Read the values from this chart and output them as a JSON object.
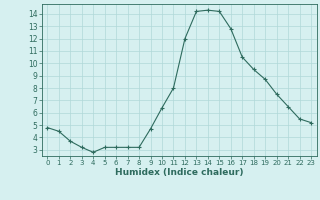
{
  "x": [
    0,
    1,
    2,
    3,
    4,
    5,
    6,
    7,
    8,
    9,
    10,
    11,
    12,
    13,
    14,
    15,
    16,
    17,
    18,
    19,
    20,
    21,
    22,
    23
  ],
  "y": [
    4.8,
    4.5,
    3.7,
    3.2,
    2.8,
    3.2,
    3.2,
    3.2,
    3.2,
    4.7,
    6.4,
    8.0,
    12.0,
    14.2,
    14.3,
    14.2,
    12.8,
    10.5,
    9.5,
    8.7,
    7.5,
    6.5,
    5.5,
    5.2
  ],
  "xlabel": "Humidex (Indice chaleur)",
  "ylim": [
    2.5,
    14.8
  ],
  "xlim": [
    -0.5,
    23.5
  ],
  "yticks": [
    3,
    4,
    5,
    6,
    7,
    8,
    9,
    10,
    11,
    12,
    13,
    14
  ],
  "xticks": [
    0,
    1,
    2,
    3,
    4,
    5,
    6,
    7,
    8,
    9,
    10,
    11,
    12,
    13,
    14,
    15,
    16,
    17,
    18,
    19,
    20,
    21,
    22,
    23
  ],
  "line_color": "#2e6b5e",
  "marker": "+",
  "bg_color": "#d6f0f0",
  "grid_color": "#b0d8d8",
  "title": ""
}
